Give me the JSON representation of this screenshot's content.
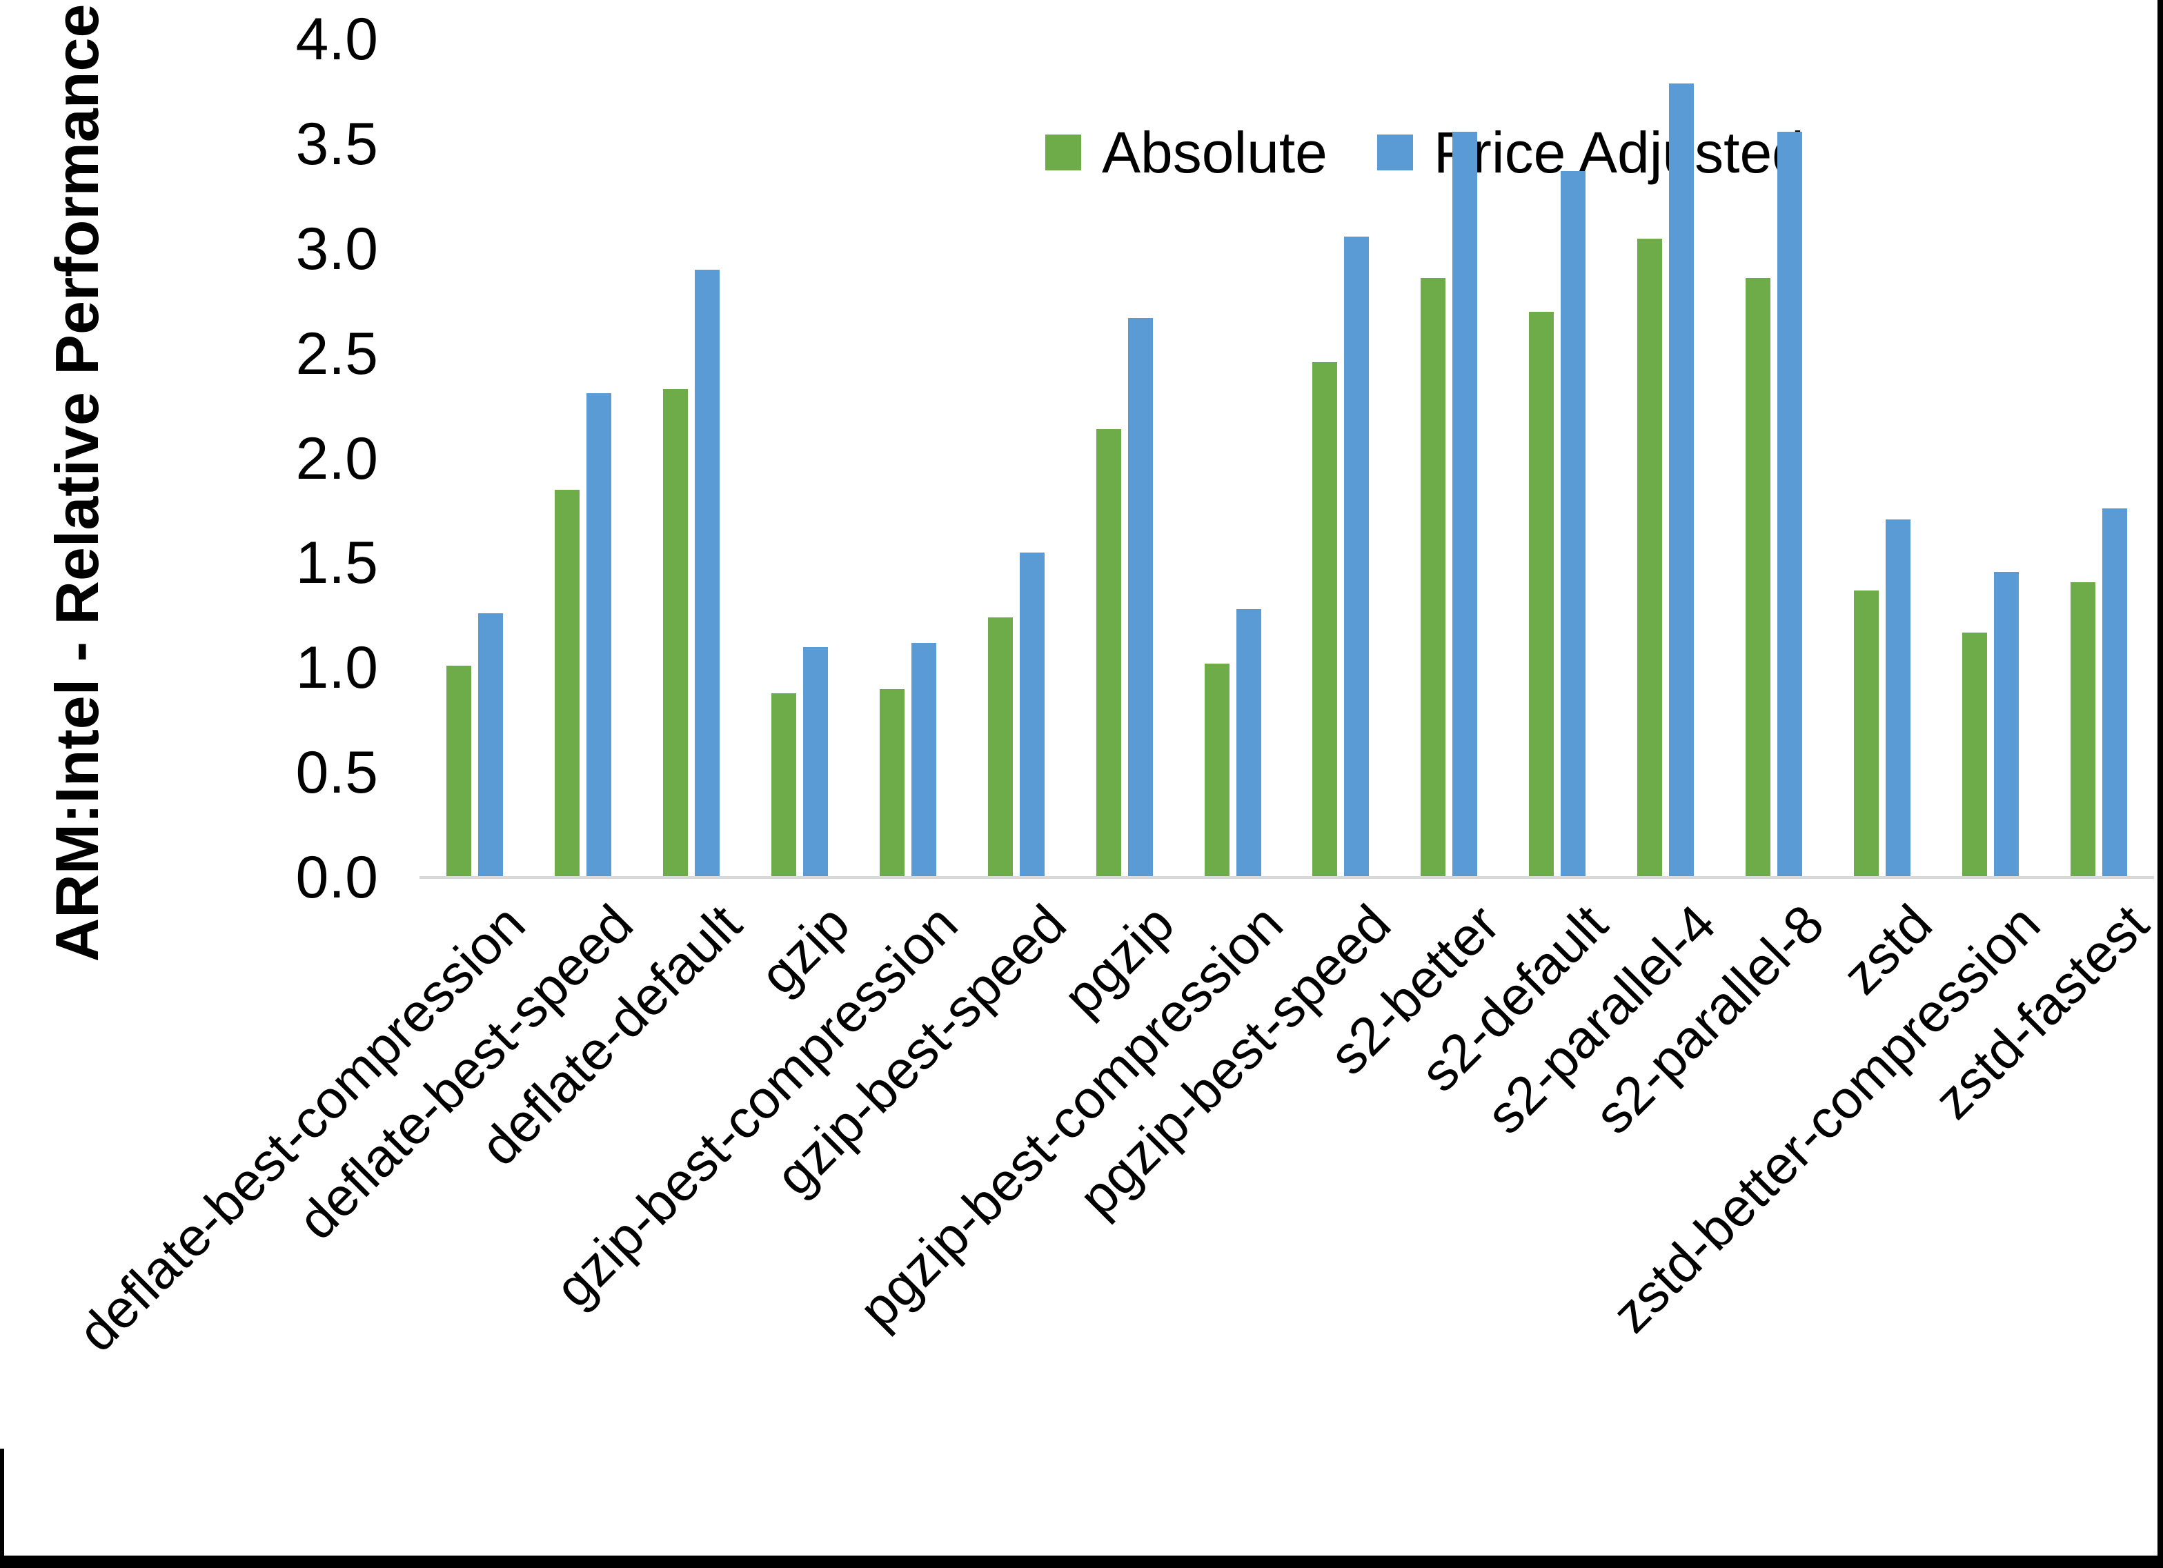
{
  "chart_data": {
    "type": "bar",
    "title": "",
    "xlabel": "",
    "ylabel": "ARM:Intel - Relative Performance",
    "ylim": [
      0.0,
      4.0
    ],
    "ytick_labels": [
      "0.0",
      "0.5",
      "1.0",
      "1.5",
      "2.0",
      "2.5",
      "3.0",
      "3.5",
      "4.0"
    ],
    "grid": false,
    "legend_position": "top-inside",
    "categories": [
      "deflate-best-compression",
      "deflate-best-speed",
      "deflate-default",
      "gzip",
      "gzip-best-compression",
      "gzip-best-speed",
      "pgzip",
      "pgzip-best-compression",
      "pgzip-best-speed",
      "s2-better",
      "s2-default",
      "s2-parallel-4",
      "s2-parallel-8",
      "zstd",
      "zstd-better-compression",
      "zstd-fastest"
    ],
    "series": [
      {
        "name": "Absolute",
        "color": "#6EAC49",
        "values": [
          1.01,
          1.85,
          2.33,
          0.88,
          0.9,
          1.24,
          2.14,
          1.02,
          2.46,
          2.86,
          2.7,
          3.05,
          2.86,
          1.37,
          1.17,
          1.41
        ]
      },
      {
        "name": "Price Adjusted",
        "color": "#5B9BD5",
        "values": [
          1.26,
          2.31,
          2.9,
          1.1,
          1.12,
          1.55,
          2.67,
          1.28,
          3.06,
          3.56,
          3.37,
          3.79,
          3.56,
          1.71,
          1.46,
          1.76
        ]
      }
    ],
    "axis_line_color": "#d9d9d9",
    "frame_color": "#000000"
  }
}
